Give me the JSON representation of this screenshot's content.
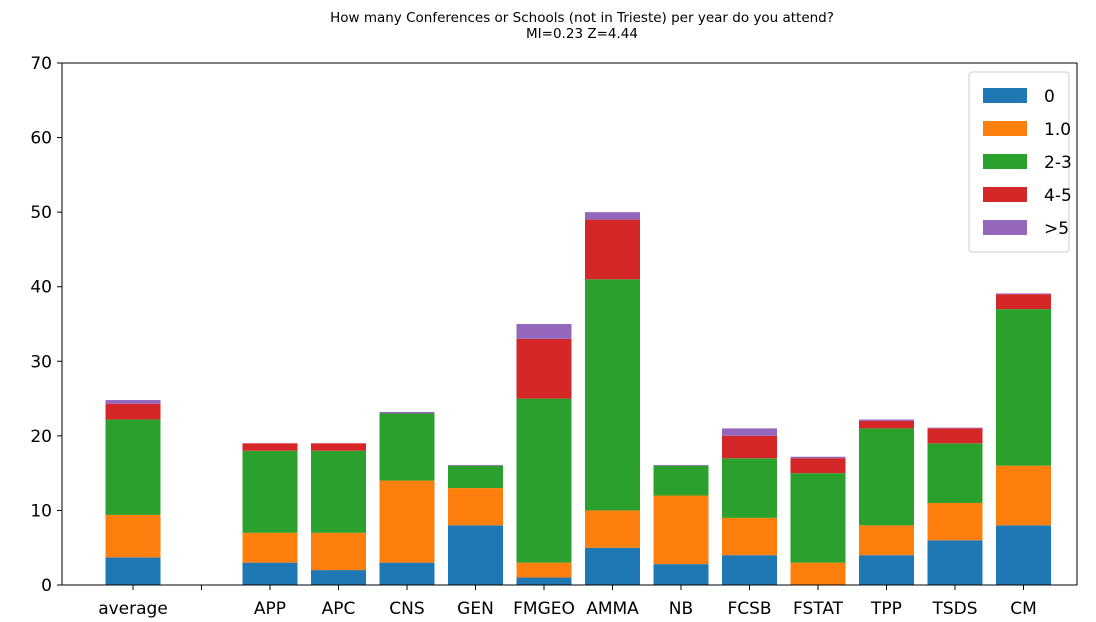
{
  "chart_data": {
    "type": "bar",
    "stacked": true,
    "title": "How many Conferences or Schools (not in Trieste) per year do you attend?",
    "subtitle": "MI=0.23 Z=4.44",
    "xlabel": "",
    "ylabel": "",
    "ylim": [
      0,
      70
    ],
    "yticks": [
      0,
      10,
      20,
      30,
      40,
      50,
      60,
      70
    ],
    "grid": false,
    "legend_position": "top-right",
    "categories": [
      "average",
      "",
      "APP",
      "APC",
      "CNS",
      "GEN",
      "FMGEO",
      "AMMA",
      "NB",
      "FCSB",
      "FSTAT",
      "TPP",
      "TSDS",
      "CM"
    ],
    "tick_labels": [
      "average",
      "",
      "APP",
      "APC",
      "CNS",
      "GEN",
      "FMGEO",
      "AMMA",
      "NB",
      "FCSB",
      "FSTAT",
      "TPP",
      "TSDS",
      "CM"
    ],
    "series": [
      {
        "name": "0",
        "color": "#1f77b4",
        "values": [
          3.7,
          0,
          3,
          2,
          3,
          8,
          1,
          5,
          2.8,
          4,
          0,
          4,
          6,
          8
        ]
      },
      {
        "name": "1.0",
        "color": "#ff7f0e",
        "values": [
          5.7,
          0,
          4,
          5,
          11,
          5,
          2,
          5,
          9.2,
          5,
          3,
          4,
          5,
          8
        ]
      },
      {
        "name": "2-3",
        "color": "#2ca02c",
        "values": [
          12.8,
          0,
          11,
          11,
          9,
          3,
          22,
          31,
          4,
          8,
          12,
          13,
          8,
          21
        ]
      },
      {
        "name": "4-5",
        "color": "#d62728",
        "values": [
          2.1,
          0,
          1,
          1,
          0,
          0,
          8,
          8,
          0,
          3,
          2,
          1,
          2,
          2
        ]
      },
      {
        "name": ">5",
        "color": "#9467bd",
        "values": [
          0.5,
          0,
          0,
          0,
          0.2,
          0.1,
          2,
          1,
          0.1,
          1,
          0.2,
          0.2,
          0.1,
          0.1
        ]
      }
    ]
  }
}
